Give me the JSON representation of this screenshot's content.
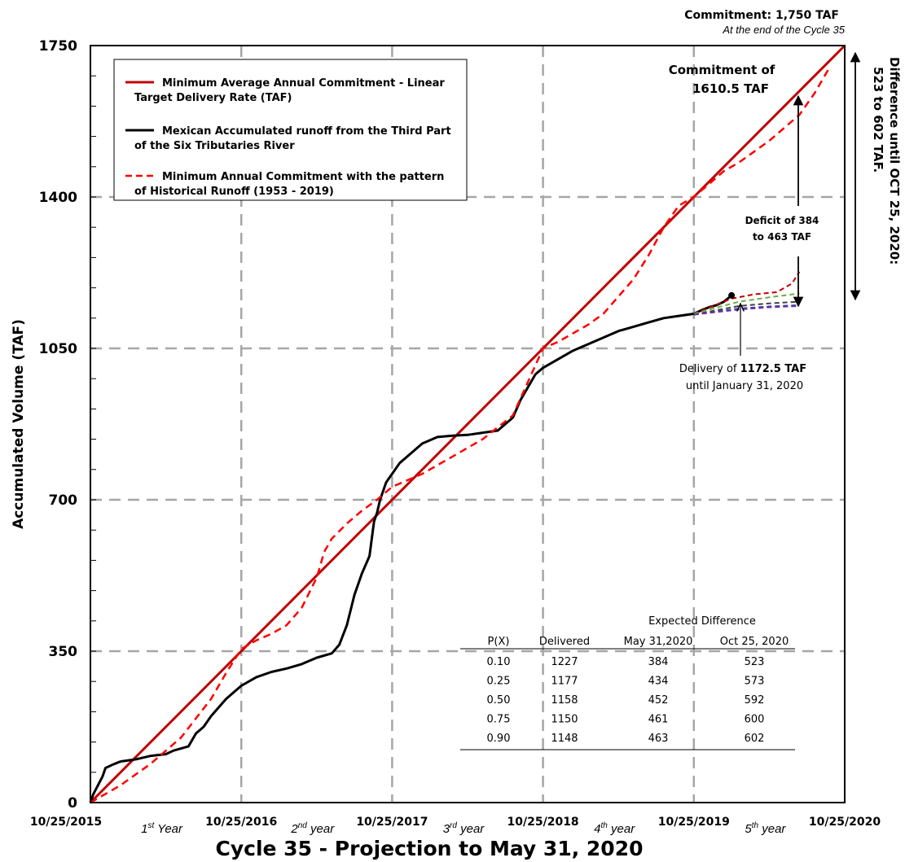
{
  "chart_data": {
    "type": "line",
    "title": "Cycle 35 - Projection to May 31, 2020",
    "ylabel": "Accumulated Volume (TAF)",
    "xlabel": "",
    "x_ticks": [
      "10/25/2015",
      "10/25/2016",
      "10/25/2017",
      "10/25/2018",
      "10/25/2019",
      "10/25/2020"
    ],
    "year_labels": [
      {
        "base": "1",
        "sup": "st",
        "rest": " Year"
      },
      {
        "base": "2",
        "sup": "nd",
        "rest": " year"
      },
      {
        "base": "3",
        "sup": "rd",
        "rest": " year"
      },
      {
        "base": "4",
        "sup": "th",
        "rest": " year"
      },
      {
        "base": "5",
        "sup": "th",
        "rest": " year"
      }
    ],
    "y_ticks": [
      0,
      350,
      700,
      1050,
      1400,
      1750
    ],
    "xlim": [
      0,
      5
    ],
    "ylim": [
      0,
      1750
    ],
    "grid": true,
    "series": [
      {
        "name": "Minimum Average Annual Commitment - Linear Target Delivery Rate (TAF)",
        "color": "#c00000",
        "style": "solid",
        "x": [
          0,
          5
        ],
        "y": [
          0,
          1750
        ]
      },
      {
        "name": "Mexican Accumulated runoff from the Third Part of the Six Tributaries River",
        "color": "#000000",
        "style": "solid",
        "x": [
          0,
          0.02,
          0.05,
          0.08,
          0.1,
          0.15,
          0.2,
          0.3,
          0.4,
          0.5,
          0.55,
          0.6,
          0.65,
          0.7,
          0.75,
          0.8,
          0.85,
          0.9,
          1.0,
          1.1,
          1.2,
          1.3,
          1.4,
          1.5,
          1.6,
          1.65,
          1.7,
          1.75,
          1.8,
          1.85,
          1.88,
          1.9,
          1.92,
          1.94,
          1.96,
          1.98,
          2.0,
          2.05,
          2.1,
          2.2,
          2.3,
          2.4,
          2.5,
          2.6,
          2.7,
          2.8,
          2.85,
          2.9,
          2.95,
          3.0,
          3.1,
          3.2,
          3.3,
          3.4,
          3.5,
          3.6,
          3.7,
          3.8,
          3.9,
          4.0,
          4.05,
          4.1,
          4.15,
          4.2,
          4.25
        ],
        "y": [
          0,
          20,
          40,
          60,
          80,
          88,
          95,
          100,
          108,
          112,
          120,
          125,
          130,
          160,
          175,
          200,
          220,
          240,
          270,
          290,
          302,
          310,
          320,
          335,
          345,
          365,
          410,
          480,
          530,
          570,
          650,
          670,
          700,
          720,
          740,
          750,
          760,
          785,
          800,
          830,
          845,
          848,
          850,
          855,
          860,
          890,
          930,
          960,
          990,
          1005,
          1025,
          1045,
          1060,
          1075,
          1090,
          1100,
          1110,
          1120,
          1125,
          1130,
          1138,
          1145,
          1150,
          1158,
          1172.5
        ]
      },
      {
        "name": "Minimum Annual Commitment with the pattern of Historical Runoff (1953 - 2019)",
        "color": "#ff0000",
        "style": "dashed",
        "x": [
          0,
          0.2,
          0.4,
          0.6,
          0.8,
          0.9,
          1.0,
          1.1,
          1.2,
          1.3,
          1.4,
          1.5,
          1.55,
          1.6,
          1.7,
          1.8,
          1.9,
          2.0,
          2.2,
          2.4,
          2.6,
          2.8,
          3.0,
          3.1,
          3.2,
          3.3,
          3.4,
          3.5,
          3.6,
          3.7,
          3.8,
          3.9,
          4.0,
          4.1,
          4.2,
          4.3,
          4.4,
          4.5,
          4.6,
          4.7,
          4.8,
          4.9
        ],
        "y": [
          0,
          40,
          90,
          150,
          240,
          300,
          355,
          375,
          390,
          410,
          450,
          520,
          580,
          610,
          645,
          675,
          700,
          730,
          760,
          800,
          840,
          895,
          1050,
          1065,
          1085,
          1105,
          1130,
          1170,
          1210,
          1265,
          1330,
          1380,
          1400,
          1430,
          1460,
          1480,
          1505,
          1530,
          1560,
          1590,
          1640,
          1700
        ]
      },
      {
        "name": "P(X) 0.10",
        "color": "#c00000",
        "style": "dashed",
        "x": [
          4.0,
          4.25,
          4.4,
          4.55,
          4.65,
          4.7
        ],
        "y": [
          1130,
          1165,
          1175,
          1180,
          1200,
          1227
        ]
      },
      {
        "name": "P(X) 0.25",
        "color": "#70ad47",
        "style": "dashed",
        "x": [
          4.0,
          4.3,
          4.5,
          4.7
        ],
        "y": [
          1130,
          1158,
          1168,
          1177
        ]
      },
      {
        "name": "P(X) 0.50",
        "color": "#404040",
        "style": "dashed",
        "x": [
          4.0,
          4.3,
          4.5,
          4.7
        ],
        "y": [
          1128,
          1148,
          1154,
          1158
        ]
      },
      {
        "name": "P(X) 0.75",
        "color": "#1f3fbf",
        "style": "dashed",
        "x": [
          4.0,
          4.3,
          4.5,
          4.7
        ],
        "y": [
          1128,
          1142,
          1147,
          1150
        ]
      },
      {
        "name": "P(X) 0.90",
        "color": "#7030a0",
        "style": "dashed",
        "x": [
          4.0,
          4.3,
          4.5,
          4.7
        ],
        "y": [
          1128,
          1140,
          1145,
          1148
        ]
      }
    ],
    "legend": {
      "placement": "top-left",
      "entries": [
        {
          "line1": "Minimum Average Annual Commitment - Linear",
          "line2": "Target Delivery Rate (TAF)",
          "color": "#c00000",
          "style": "solid"
        },
        {
          "line1": "Mexican Accumulated runoff from the Third Part",
          "line2": "of the Six Tributaries River",
          "color": "#000000",
          "style": "solid"
        },
        {
          "line1": "Minimum Annual Commitment with the pattern",
          "line2": "of Historical Runoff (1953  - 2019)",
          "color": "#ff0000",
          "style": "dashed"
        }
      ]
    },
    "annotations": {
      "commitment_top": "Commitment:  1,750 TAF",
      "commitment_top_sub": "At the end of the Cycle 35",
      "commitment_1610_l1": "Commitment of",
      "commitment_1610_l2": "1610.5 TAF",
      "deficit_l1": "Deficit of 384",
      "deficit_l2": "to 463 TAF",
      "delivery_l1_prefix": "Delivery of ",
      "delivery_l1_value": "1172.5 TAF",
      "delivery_l2": "until January 31, 2020",
      "difference_l1": "Difference until OCT 25, 2020:",
      "difference_l2": "523 to 602 TAF."
    },
    "table": {
      "title": "Expected Difference",
      "headers": [
        "P(X)",
        "Delivered",
        "May 31,2020",
        "Oct 25, 2020"
      ],
      "rows": [
        [
          "0.10",
          "1227",
          "384",
          "523"
        ],
        [
          "0.25",
          "1177",
          "434",
          "573"
        ],
        [
          "0.50",
          "1158",
          "452",
          "592"
        ],
        [
          "0.75",
          "1150",
          "461",
          "600"
        ],
        [
          "0.90",
          "1148",
          "463",
          "602"
        ]
      ]
    }
  }
}
